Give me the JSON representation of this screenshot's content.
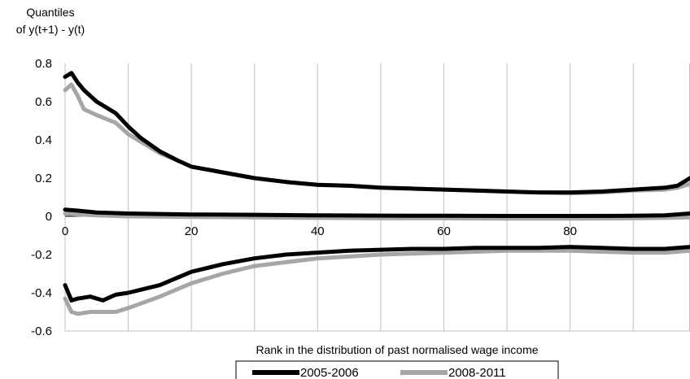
{
  "chart_data": {
    "type": "line",
    "title": "",
    "ylabel_lines": [
      "Quantiles",
      "of y(t+1) - y(t)"
    ],
    "xlabel": "Rank in the distribution of past normalised wage income",
    "xlim": [
      0,
      99
    ],
    "ylim": [
      -0.6,
      0.8
    ],
    "x_ticks": [
      0,
      20,
      40,
      60,
      80
    ],
    "y_ticks": [
      0.8,
      0.6,
      0.4,
      0.2,
      0,
      -0.2,
      -0.4,
      -0.6
    ],
    "y_tick_labels": [
      "0.8",
      "0.6",
      "0.4",
      "0.2",
      "0",
      "-0.2",
      "-0.4",
      "-0.6"
    ],
    "x_tick_labels": [
      "0",
      "20",
      "40",
      "60",
      "80"
    ],
    "grid": "vertical",
    "legend_position": "bottom",
    "series": [
      {
        "name": "2005-2006",
        "color": "#000000",
        "lines": [
          {
            "quantile": "upper",
            "x": [
              0,
              1,
              2,
              3,
              5,
              8,
              10,
              12,
              15,
              18,
              20,
              25,
              30,
              35,
              40,
              45,
              50,
              55,
              60,
              65,
              70,
              75,
              80,
              85,
              90,
              95,
              97,
              99
            ],
            "y": [
              0.73,
              0.75,
              0.7,
              0.66,
              0.6,
              0.54,
              0.47,
              0.41,
              0.34,
              0.29,
              0.26,
              0.23,
              0.2,
              0.18,
              0.165,
              0.16,
              0.15,
              0.145,
              0.14,
              0.135,
              0.13,
              0.125,
              0.125,
              0.13,
              0.14,
              0.15,
              0.16,
              0.2
            ]
          },
          {
            "quantile": "median",
            "x": [
              0,
              2,
              5,
              10,
              20,
              30,
              40,
              50,
              60,
              70,
              80,
              90,
              95,
              99
            ],
            "y": [
              0.035,
              0.03,
              0.02,
              0.015,
              0.01,
              0.008,
              0.005,
              0.004,
              0.003,
              0.002,
              0.002,
              0.003,
              0.005,
              0.015
            ]
          },
          {
            "quantile": "lower",
            "x": [
              0,
              1,
              2,
              4,
              6,
              8,
              10,
              15,
              20,
              25,
              30,
              35,
              40,
              45,
              50,
              55,
              60,
              65,
              70,
              75,
              80,
              85,
              90,
              95,
              99
            ],
            "y": [
              -0.36,
              -0.44,
              -0.43,
              -0.42,
              -0.44,
              -0.41,
              -0.4,
              -0.36,
              -0.29,
              -0.25,
              -0.22,
              -0.2,
              -0.19,
              -0.18,
              -0.175,
              -0.17,
              -0.17,
              -0.165,
              -0.165,
              -0.165,
              -0.16,
              -0.165,
              -0.17,
              -0.17,
              -0.16
            ]
          }
        ]
      },
      {
        "name": "2008-2011",
        "color": "#a6a6a6",
        "lines": [
          {
            "quantile": "upper",
            "x": [
              0,
              1,
              2,
              3,
              5,
              8,
              10,
              12,
              15,
              18,
              20,
              25,
              30,
              35,
              40,
              45,
              50,
              55,
              60,
              65,
              70,
              75,
              80,
              85,
              90,
              95,
              97,
              99
            ],
            "y": [
              0.66,
              0.69,
              0.63,
              0.56,
              0.53,
              0.49,
              0.43,
              0.39,
              0.33,
              0.29,
              0.26,
              0.23,
              0.2,
              0.18,
              0.165,
              0.16,
              0.15,
              0.145,
              0.14,
              0.135,
              0.13,
              0.125,
              0.12,
              0.125,
              0.135,
              0.14,
              0.15,
              0.17
            ]
          },
          {
            "quantile": "median",
            "x": [
              0,
              2,
              5,
              10,
              20,
              30,
              40,
              50,
              60,
              70,
              80,
              90,
              95,
              99
            ],
            "y": [
              0.015,
              0.01,
              0.005,
              0.0,
              -0.003,
              -0.005,
              -0.008,
              -0.01,
              -0.01,
              -0.012,
              -0.012,
              -0.01,
              -0.008,
              -0.005
            ]
          },
          {
            "quantile": "lower",
            "x": [
              0,
              1,
              2,
              4,
              6,
              8,
              10,
              15,
              20,
              25,
              30,
              35,
              40,
              45,
              50,
              55,
              60,
              65,
              70,
              75,
              80,
              85,
              90,
              95,
              99
            ],
            "y": [
              -0.43,
              -0.5,
              -0.51,
              -0.5,
              -0.5,
              -0.5,
              -0.48,
              -0.42,
              -0.35,
              -0.3,
              -0.26,
              -0.24,
              -0.22,
              -0.21,
              -0.2,
              -0.195,
              -0.19,
              -0.185,
              -0.18,
              -0.18,
              -0.18,
              -0.185,
              -0.19,
              -0.19,
              -0.18
            ]
          }
        ]
      }
    ]
  }
}
